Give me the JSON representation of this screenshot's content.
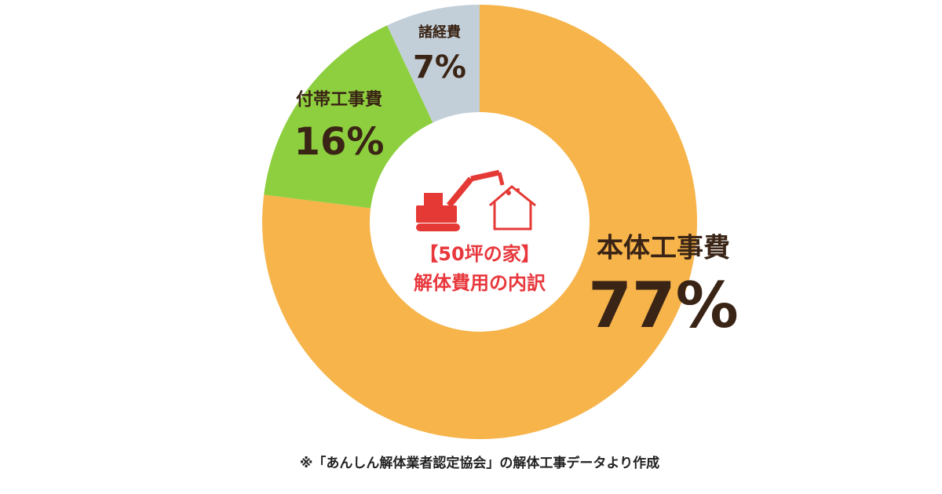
{
  "chart_data": {
    "type": "donut",
    "categories": [
      "本体工事費",
      "付帯工事費",
      "諸経費"
    ],
    "values": [
      77,
      16,
      7
    ],
    "value_labels": [
      "77%",
      "16%",
      "7%"
    ],
    "colors": [
      "#f6b44b",
      "#8dcf3f",
      "#c3cfd8"
    ],
    "center_text": [
      "【50坪の家】",
      "解体費用の内訳"
    ],
    "note": "※「あんしん解体業者認定協会」の解体工事データより作成"
  }
}
